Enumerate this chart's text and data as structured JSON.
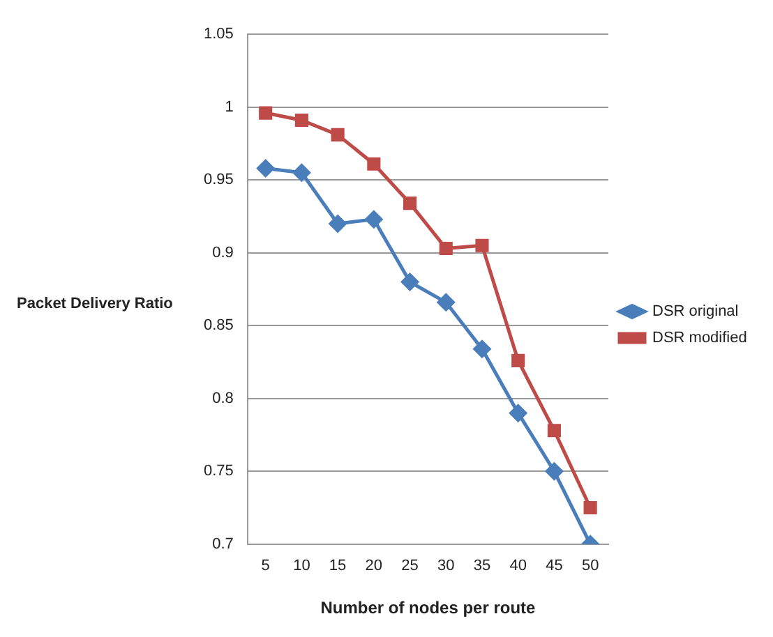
{
  "chart_data": {
    "type": "line",
    "xlabel": "Number of nodes per route",
    "ylabel": "Packet Delivery Ratio",
    "categories": [
      "5",
      "10",
      "15",
      "20",
      "25",
      "30",
      "35",
      "40",
      "45",
      "50"
    ],
    "series": [
      {
        "name": "DSR original",
        "color": "#4a7ebb",
        "marker": "diamond",
        "values": [
          0.958,
          0.955,
          0.92,
          0.923,
          0.88,
          0.866,
          0.834,
          0.79,
          0.75,
          0.7
        ]
      },
      {
        "name": "DSR modified",
        "color": "#be4b48",
        "marker": "square",
        "values": [
          0.996,
          0.991,
          0.981,
          0.961,
          0.934,
          0.903,
          0.905,
          0.826,
          0.778,
          0.725
        ]
      }
    ],
    "ylim": [
      0.7,
      1.05
    ],
    "yticks": [
      0.7,
      0.75,
      0.8,
      0.85,
      0.9,
      0.95,
      1,
      1.05
    ],
    "grid": "y",
    "legend": "right",
    "line_style": "solid"
  }
}
